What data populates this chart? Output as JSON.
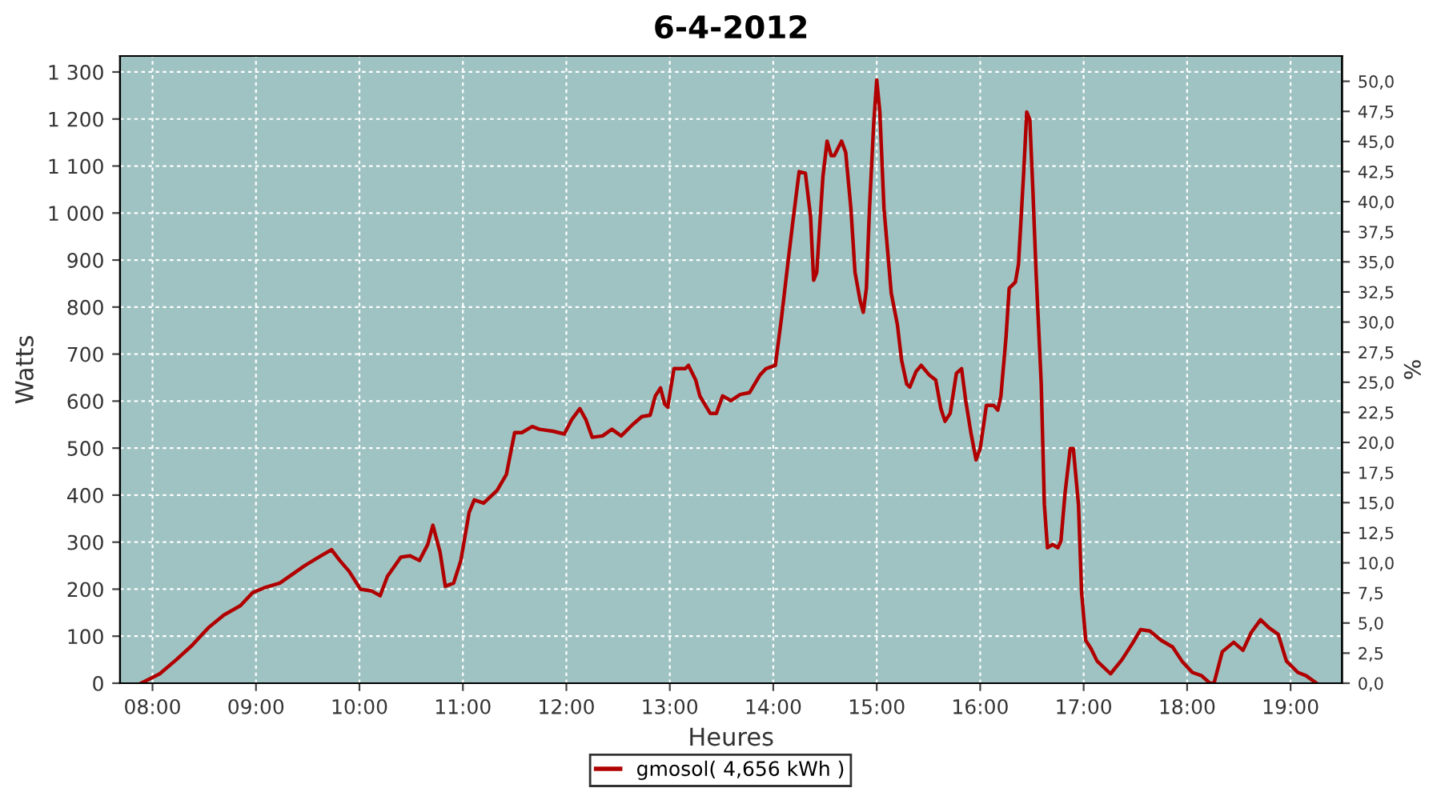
{
  "chart_data": {
    "type": "line",
    "title": "6-4-2012",
    "xlabel": "Heures",
    "ylabel": "Watts",
    "y2label": "%",
    "xlim": [
      7.686,
      19.497
    ],
    "xticks": [
      {
        "value": 8,
        "label": "08:00"
      },
      {
        "value": 9,
        "label": "09:00"
      },
      {
        "value": 10,
        "label": "10:00"
      },
      {
        "value": 11,
        "label": "11:00"
      },
      {
        "value": 12,
        "label": "12:00"
      },
      {
        "value": 13,
        "label": "13:00"
      },
      {
        "value": 14,
        "label": "14:00"
      },
      {
        "value": 15,
        "label": "15:00"
      },
      {
        "value": 16,
        "label": "16:00"
      },
      {
        "value": 17,
        "label": "17:00"
      },
      {
        "value": 18,
        "label": "18:00"
      },
      {
        "value": 19,
        "label": "19:00"
      }
    ],
    "ylim": [
      0,
      1334
    ],
    "yticks": [
      0,
      100,
      200,
      300,
      400,
      500,
      600,
      700,
      800,
      900,
      {
        "value": 1000,
        "label": "1 000"
      },
      {
        "value": 1100,
        "label": "1 100"
      },
      {
        "value": 1200,
        "label": "1 200"
      },
      {
        "value": 1300,
        "label": "1 300"
      }
    ],
    "y2lim": [
      0,
      52.1
    ],
    "y2ticks": [
      {
        "value": 0,
        "label": "0,0"
      },
      {
        "value": 2.5,
        "label": "2,5"
      },
      {
        "value": 5,
        "label": "5,0"
      },
      {
        "value": 7.5,
        "label": "7,5"
      },
      {
        "value": 10,
        "label": "10,0"
      },
      {
        "value": 12.5,
        "label": "12,5"
      },
      {
        "value": 15,
        "label": "15,0"
      },
      {
        "value": 17.5,
        "label": "17,5"
      },
      {
        "value": 20,
        "label": "20,0"
      },
      {
        "value": 22.5,
        "label": "22,5"
      },
      {
        "value": 25,
        "label": "25,0"
      },
      {
        "value": 27.5,
        "label": "27,5"
      },
      {
        "value": 30,
        "label": "30,0"
      },
      {
        "value": 32.5,
        "label": "32,5"
      },
      {
        "value": 35,
        "label": "35,0"
      },
      {
        "value": 37.5,
        "label": "37,5"
      },
      {
        "value": 40,
        "label": "40,0"
      },
      {
        "value": 42.5,
        "label": "42,5"
      },
      {
        "value": 45,
        "label": "45,0"
      },
      {
        "value": 47.5,
        "label": "47,5"
      },
      {
        "value": 50,
        "label": "50,0"
      }
    ],
    "grid": true,
    "legend": "bottom",
    "marker": "none",
    "line_style": "solid",
    "series": [
      {
        "name": "gmosol( 4,656 kWh )",
        "color": "#b00000",
        "x": [
          7.89,
          8.07,
          8.23,
          8.38,
          8.54,
          8.69,
          8.85,
          8.97,
          9.08,
          9.23,
          9.36,
          9.47,
          9.62,
          9.73,
          9.81,
          9.9,
          10.01,
          10.12,
          10.2,
          10.27,
          10.4,
          10.49,
          10.58,
          10.66,
          10.71,
          10.78,
          10.83,
          10.91,
          10.98,
          11.06,
          11.11,
          11.2,
          11.33,
          11.42,
          11.5,
          11.57,
          11.67,
          11.74,
          11.87,
          11.98,
          12.05,
          12.13,
          12.19,
          12.25,
          12.35,
          12.44,
          12.53,
          12.64,
          12.73,
          12.81,
          12.86,
          12.91,
          12.95,
          12.98,
          13.04,
          13.15,
          13.18,
          13.25,
          13.29,
          13.39,
          13.45,
          13.51,
          13.59,
          13.68,
          13.77,
          13.87,
          13.93,
          14.02,
          14.08,
          14.14,
          14.19,
          14.25,
          14.31,
          14.36,
          14.39,
          14.42,
          14.48,
          14.52,
          14.56,
          14.59,
          14.66,
          14.7,
          14.75,
          14.79,
          14.84,
          14.87,
          14.9,
          14.93,
          14.97,
          15.0,
          15.03,
          15.07,
          15.14,
          15.2,
          15.24,
          15.29,
          15.32,
          15.38,
          15.43,
          15.51,
          15.57,
          15.62,
          15.66,
          15.71,
          15.77,
          15.82,
          15.86,
          15.91,
          15.96,
          16.0,
          16.06,
          16.13,
          16.17,
          16.2,
          16.25,
          16.28,
          16.34,
          16.37,
          16.42,
          16.45,
          16.48,
          16.51,
          16.54,
          16.59,
          16.62,
          16.65,
          16.7,
          16.75,
          16.78,
          16.82,
          16.87,
          16.9,
          16.95,
          16.98,
          17.02,
          17.07,
          17.13,
          17.26,
          17.37,
          17.47,
          17.55,
          17.64,
          17.75,
          17.86,
          17.95,
          18.05,
          18.14,
          18.22,
          18.26,
          18.34,
          18.45,
          18.54,
          18.62,
          18.71,
          18.79,
          18.88,
          18.96,
          19.07,
          19.15,
          19.25
        ],
        "values": [
          0,
          20,
          50,
          80,
          118,
          145,
          165,
          193,
          203,
          213,
          233,
          250,
          270,
          284,
          261,
          238,
          200,
          196,
          186,
          227,
          268,
          271,
          261,
          295,
          336,
          278,
          206,
          213,
          261,
          363,
          390,
          383,
          410,
          444,
          533,
          533,
          546,
          540,
          536,
          530,
          560,
          584,
          560,
          523,
          526,
          540,
          526,
          550,
          567,
          570,
          611,
          628,
          594,
          587,
          669,
          669,
          676,
          645,
          611,
          574,
          574,
          611,
          601,
          614,
          618,
          655,
          669,
          676,
          778,
          891,
          983,
          1088,
          1085,
          993,
          857,
          874,
          1078,
          1153,
          1122,
          1122,
          1153,
          1129,
          1010,
          874,
          813,
          789,
          840,
          1010,
          1188,
          1283,
          1215,
          1010,
          830,
          762,
          687,
          636,
          630,
          663,
          676,
          655,
          645,
          584,
          557,
          574,
          659,
          669,
          601,
          533,
          475,
          499,
          591,
          591,
          581,
          611,
          737,
          840,
          853,
          891,
          1085,
          1215,
          1198,
          1044,
          874,
          636,
          380,
          288,
          295,
          288,
          302,
          404,
          499,
          499,
          380,
          193,
          91,
          74,
          47,
          20,
          50,
          84,
          114,
          111,
          91,
          77,
          47,
          23,
          16,
          0,
          0,
          67,
          87,
          70,
          108,
          135,
          118,
          104,
          47,
          23,
          16,
          0
        ]
      }
    ]
  }
}
